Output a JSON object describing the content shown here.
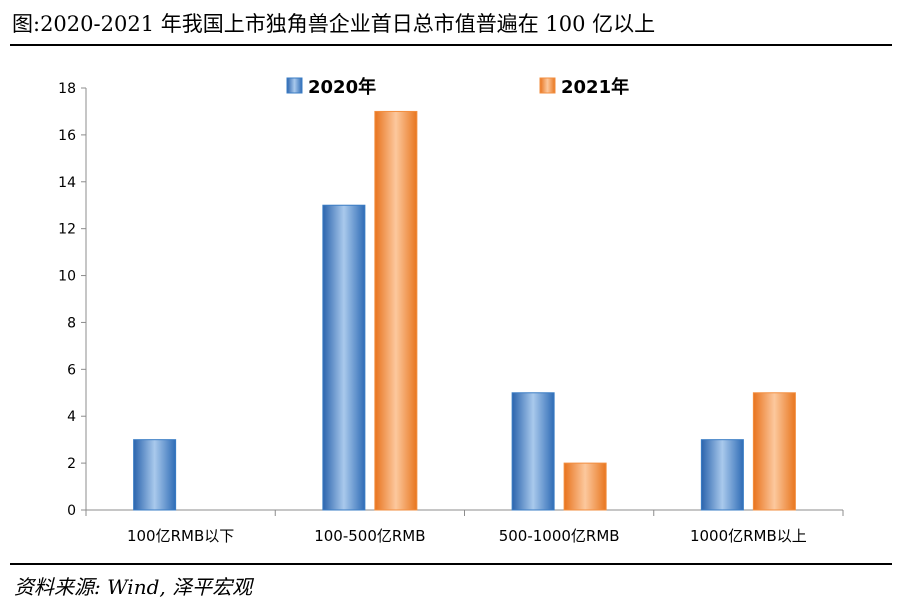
{
  "title": "图:2020-2021 年我国上市独角兽企业首日总市值普遍在 100 亿以上",
  "source": "资料来源: Wind, 泽平宏观",
  "chart_data": {
    "type": "bar",
    "categories": [
      "100亿RMB以下",
      "100-500亿RMB",
      "500-1000亿RMB",
      "1000亿RMB以上"
    ],
    "series": [
      {
        "name": "2020年",
        "values": [
          3,
          13,
          5,
          3
        ],
        "color": "#3a7cc4"
      },
      {
        "name": "2021年",
        "values": [
          0,
          17,
          2,
          5
        ],
        "color": "#f28e3f"
      }
    ],
    "ylim": [
      0,
      18
    ],
    "yticks": [
      "0",
      "2",
      "4",
      "6",
      "8",
      "10",
      "12",
      "14",
      "16",
      "18"
    ],
    "grid": false,
    "legend": "top"
  }
}
